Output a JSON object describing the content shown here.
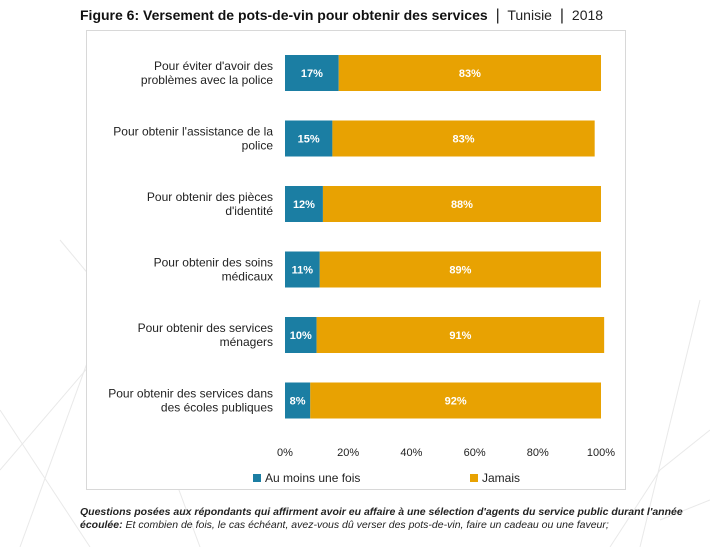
{
  "title": {
    "main": "Figure 6: Versement de pots-de-vin pour obtenir des services",
    "country": "Tunisie",
    "year": "2018"
  },
  "chart_data": {
    "type": "bar",
    "orientation": "horizontal",
    "stacked": true,
    "categories": [
      [
        "Pour éviter d'avoir des",
        "problèmes avec la police"
      ],
      [
        "Pour obtenir l'assistance de la",
        "police"
      ],
      [
        "Pour obtenir des pièces",
        "d'identité"
      ],
      [
        "Pour obtenir des soins",
        "médicaux"
      ],
      [
        "Pour obtenir des services",
        "ménagers"
      ],
      [
        "Pour obtenir des services dans",
        "des écoles publiques"
      ]
    ],
    "series": [
      {
        "name": "Au moins une fois",
        "color": "#1b7ea3",
        "values": [
          17,
          15,
          12,
          11,
          10,
          8
        ],
        "labels": [
          "17%",
          "15%",
          "12%",
          "11%",
          "10%",
          "8%"
        ]
      },
      {
        "name": "Jamais",
        "color": "#e8a202",
        "values": [
          83,
          83,
          88,
          89,
          91,
          92
        ],
        "labels": [
          "83%",
          "83%",
          "88%",
          "89%",
          "91%",
          "92%"
        ]
      }
    ],
    "xlim": [
      0,
      100
    ],
    "xticks": [
      0,
      20,
      40,
      60,
      80,
      100
    ],
    "xtick_labels": [
      "0%",
      "20%",
      "40%",
      "60%",
      "80%",
      "100%"
    ],
    "grid": false,
    "legend": "bottom"
  },
  "note": {
    "bold": "Questions posées aux répondants qui affirment avoir eu affaire à une sélection d'agents du service public durant l'année écoulée:",
    "text": " Et combien de fois, le cas échéant, avez-vous dû verser des pots-de-vin, faire un cadeau ou une faveur;"
  }
}
